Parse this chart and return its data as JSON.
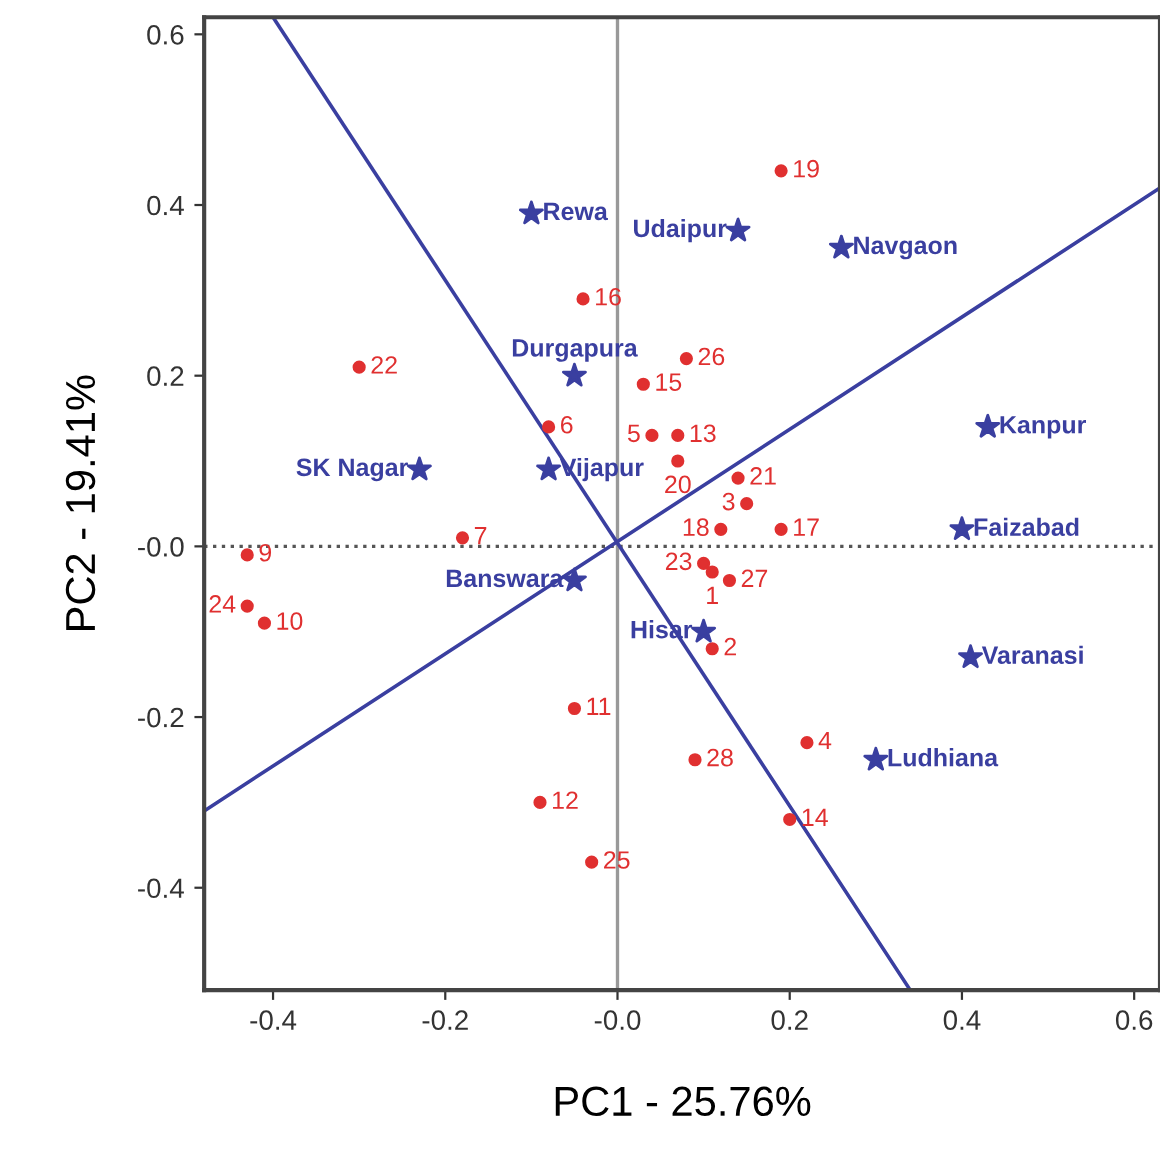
{
  "chart_data": {
    "type": "scatter",
    "xlabel": "PC1 - 25.76%",
    "ylabel": "PC2 - 19.41%",
    "xlim": [
      -0.48,
      0.63
    ],
    "ylim": [
      -0.52,
      0.62
    ],
    "xticks": [
      -0.4,
      -0.2,
      {
        "value": 0,
        "label": "-0.0"
      },
      0.2,
      0.4,
      0.6
    ],
    "yticks": [
      -0.4,
      -0.2,
      {
        "value": 0,
        "label": "-0.0"
      },
      0.2,
      0.4,
      0.6
    ],
    "grid": false,
    "legend": false,
    "ref_lines": [
      {
        "axis": "x",
        "value": 0,
        "color": "#999999",
        "line_style": "solid"
      },
      {
        "axis": "y",
        "value": 0,
        "color": "#555555",
        "line_style": "dotted"
      }
    ],
    "series": [
      {
        "color": "#e03030",
        "marker": "circle",
        "x": [
          0.19,
          -0.04,
          -0.3,
          -0.08,
          0.08,
          0.03,
          0.04,
          0.07,
          0.07,
          0.14,
          0.15,
          0.12,
          0.19,
          0.1,
          0.11,
          0.13,
          0.11,
          -0.43,
          -0.43,
          -0.41,
          -0.18,
          -0.05,
          -0.09,
          -0.03,
          0.09,
          0.22,
          0.2
        ],
        "values": [
          0.44,
          0.29,
          0.21,
          0.14,
          0.22,
          0.19,
          0.13,
          0.13,
          0.1,
          0.08,
          0.05,
          0.02,
          0.02,
          -0.02,
          -0.03,
          -0.04,
          -0.12,
          -0.01,
          -0.07,
          -0.09,
          0.01,
          -0.19,
          -0.3,
          -0.37,
          -0.25,
          -0.23,
          -0.32
        ]
      },
      {
        "color": "#3a3fa0",
        "marker": "star",
        "x": [
          -0.1,
          0.14,
          0.26,
          -0.05,
          0.43,
          -0.23,
          -0.08,
          0.4,
          -0.05,
          0.1,
          0.41,
          0.3
        ],
        "values": [
          0.39,
          0.37,
          0.35,
          0.2,
          0.14,
          0.09,
          0.09,
          0.02,
          -0.04,
          -0.1,
          -0.13,
          -0.25
        ]
      },
      {
        "type": "line",
        "color": "#3a3fa0",
        "marker": "none",
        "line_style": "solid",
        "x": [
          -0.4,
          0.34
        ],
        "values": [
          0.62,
          -0.52
        ]
      },
      {
        "type": "line",
        "color": "#3a3fa0",
        "marker": "none",
        "line_style": "solid",
        "x": [
          -0.48,
          0.63
        ],
        "values": [
          -0.31,
          0.42
        ]
      }
    ],
    "annotations": [
      {
        "text": "19",
        "x": 0.19,
        "y": 0.44
      },
      {
        "text": "16",
        "x": -0.04,
        "y": 0.29
      },
      {
        "text": "22",
        "x": -0.3,
        "y": 0.21
      },
      {
        "text": "6",
        "x": -0.08,
        "y": 0.14
      },
      {
        "text": "26",
        "x": 0.08,
        "y": 0.22
      },
      {
        "text": "15",
        "x": 0.03,
        "y": 0.19
      },
      {
        "text": "5",
        "x": 0.04,
        "y": 0.13
      },
      {
        "text": "13",
        "x": 0.07,
        "y": 0.13
      },
      {
        "text": "20",
        "x": 0.07,
        "y": 0.1
      },
      {
        "text": "21",
        "x": 0.14,
        "y": 0.08
      },
      {
        "text": "3",
        "x": 0.15,
        "y": 0.05
      },
      {
        "text": "18",
        "x": 0.12,
        "y": 0.02
      },
      {
        "text": "17",
        "x": 0.19,
        "y": 0.02
      },
      {
        "text": "23",
        "x": 0.1,
        "y": -0.02
      },
      {
        "text": "1",
        "x": 0.11,
        "y": -0.03
      },
      {
        "text": "27",
        "x": 0.13,
        "y": -0.04
      },
      {
        "text": "2",
        "x": 0.11,
        "y": -0.12
      },
      {
        "text": "9",
        "x": -0.43,
        "y": -0.01
      },
      {
        "text": "24",
        "x": -0.43,
        "y": -0.07
      },
      {
        "text": "10",
        "x": -0.41,
        "y": -0.09
      },
      {
        "text": "7",
        "x": -0.18,
        "y": 0.01
      },
      {
        "text": "11",
        "x": -0.05,
        "y": -0.19
      },
      {
        "text": "12",
        "x": -0.09,
        "y": -0.3
      },
      {
        "text": "25",
        "x": -0.03,
        "y": -0.37
      },
      {
        "text": "28",
        "x": 0.09,
        "y": -0.25
      },
      {
        "text": "4",
        "x": 0.22,
        "y": -0.23
      },
      {
        "text": "14",
        "x": 0.2,
        "y": -0.32
      },
      {
        "text": "Rewa",
        "x": -0.1,
        "y": 0.39
      },
      {
        "text": "Udaipur",
        "x": 0.14,
        "y": 0.37
      },
      {
        "text": "Navgaon",
        "x": 0.26,
        "y": 0.35
      },
      {
        "text": "Durgapura",
        "x": -0.05,
        "y": 0.2
      },
      {
        "text": "Kanpur",
        "x": 0.43,
        "y": 0.14
      },
      {
        "text": "SK Nagar",
        "x": -0.23,
        "y": 0.09
      },
      {
        "text": "Vijapur",
        "x": -0.08,
        "y": 0.09
      },
      {
        "text": "Faizabad",
        "x": 0.4,
        "y": 0.02
      },
      {
        "text": "Banswara",
        "x": -0.05,
        "y": -0.04
      },
      {
        "text": "Hisar",
        "x": 0.1,
        "y": -0.1
      },
      {
        "text": "Varanasi",
        "x": 0.41,
        "y": -0.13
      },
      {
        "text": "Ludhiana",
        "x": 0.3,
        "y": -0.25
      }
    ]
  }
}
